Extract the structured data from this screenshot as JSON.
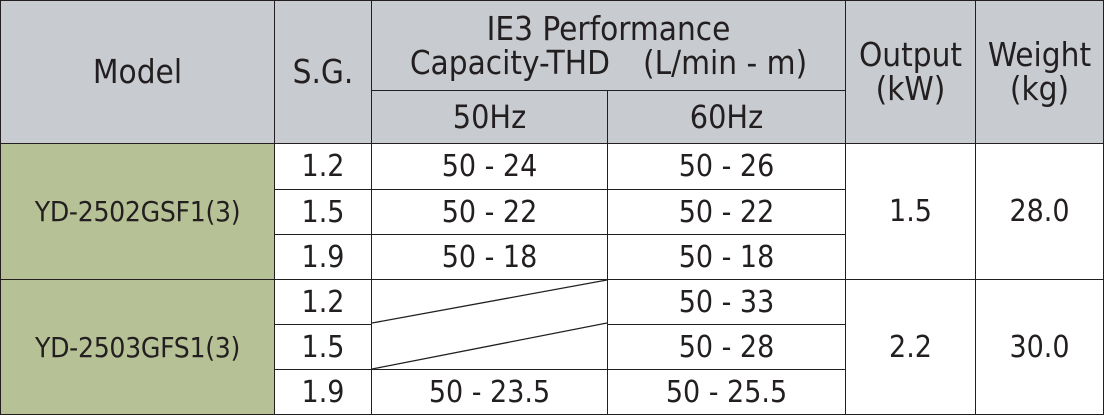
{
  "headers": {
    "model": "Model",
    "sg": "S.G.",
    "perf_line1": "IE3  Performance",
    "perf_line2": "Capacity-THD　(L/min - m)",
    "hz50": "50Hz",
    "hz60": "60Hz",
    "output_line1": "Output",
    "output_line2": "(kW)",
    "weight_line1": "Weight",
    "weight_line2": "(kg)"
  },
  "groups": [
    {
      "model": "YD-2502GSF1(3)",
      "output": "1.5",
      "weight": "28.0",
      "rows": [
        {
          "sg": "1.2",
          "hz50": "50 - 24",
          "hz60": "50 - 26"
        },
        {
          "sg": "1.5",
          "hz50": "50 - 22",
          "hz60": "50 - 22"
        },
        {
          "sg": "1.9",
          "hz50": "50 - 18",
          "hz60": "50 - 18"
        }
      ]
    },
    {
      "model": "YD-2503GFS1(3)",
      "output": "2.2",
      "weight": "30.0",
      "rows": [
        {
          "sg": "1.2",
          "hz50": "",
          "hz60": "50 - 33"
        },
        {
          "sg": "1.5",
          "hz50": "",
          "hz60": "50 - 28"
        },
        {
          "sg": "1.9",
          "hz50": "50 - 23.5",
          "hz60": "50 - 25.5"
        }
      ]
    }
  ],
  "colors": {
    "header_bg": "#c8ccd0",
    "model_bg": "#b7c196",
    "border": "#231f20"
  }
}
